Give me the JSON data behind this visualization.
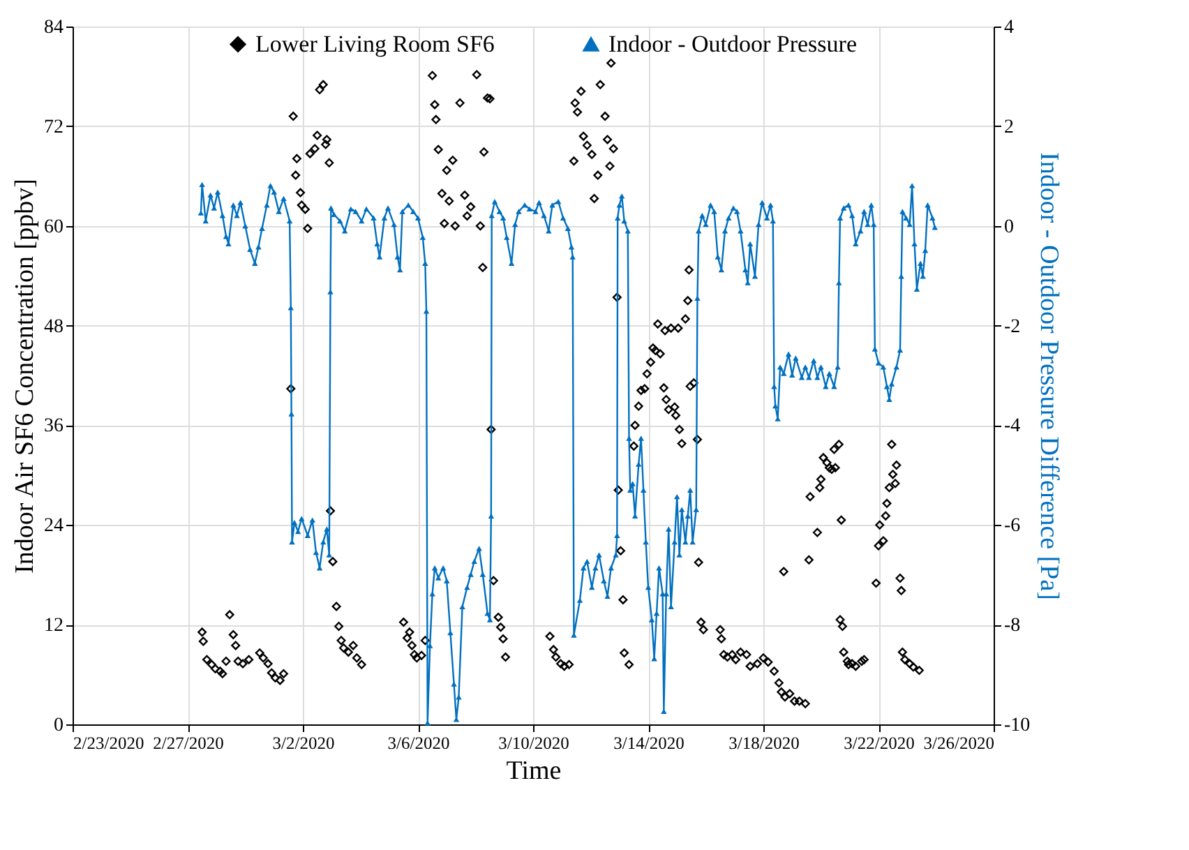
{
  "chart_data": {
    "type": "scatter",
    "xlabel": "Time",
    "ylabel": "Indoor Air SF6 Concentration [ppbv]",
    "y2label": "Indoor - Outdoor Pressure Difference [Pa]",
    "xlim": [
      "2020-02-23T00:00",
      "2020-03-26T00:00"
    ],
    "xticks": [
      {
        "value": "2020-02-23T00:00",
        "label": "2/23/2020"
      },
      {
        "value": "2020-02-27T00:00",
        "label": "2/27/2020"
      },
      {
        "value": "2020-03-02T00:00",
        "label": "3/2/2020"
      },
      {
        "value": "2020-03-06T00:00",
        "label": "3/6/2020"
      },
      {
        "value": "2020-03-10T00:00",
        "label": "3/10/2020"
      },
      {
        "value": "2020-03-14T00:00",
        "label": "3/14/2020"
      },
      {
        "value": "2020-03-18T00:00",
        "label": "3/18/2020"
      },
      {
        "value": "2020-03-22T00:00",
        "label": "3/22/2020"
      },
      {
        "value": "2020-03-26T00:00",
        "label": "3/26/2020"
      }
    ],
    "ylim": [
      0,
      84
    ],
    "yticks": [
      0,
      12,
      24,
      36,
      48,
      60,
      72,
      84
    ],
    "y2lim": [
      -10,
      4
    ],
    "y2ticks": [
      -10,
      -8,
      -6,
      -4,
      -2,
      0,
      2,
      4
    ],
    "grid": true,
    "legend": "top",
    "series": [
      {
        "name": "Lower Living Room SF6",
        "marker": "diamond",
        "color": "#000000",
        "x": [
          "2020-02-27T12:00",
          "2020-02-27T13:00",
          "2020-02-27T16:00",
          "2020-02-27T20:00",
          "2020-02-27T23:00",
          "2020-02-28T03:00",
          "2020-02-28T05:00",
          "2020-02-28T08:00",
          "2020-02-28T11:00",
          "2020-02-28T14:00",
          "2020-02-28T16:00",
          "2020-02-28T18:00",
          "2020-02-28T22:00",
          "2020-02-29T03:00",
          "2020-02-29T12:00",
          "2020-02-29T15:00",
          "2020-02-29T19:00",
          "2020-02-29T22:00",
          "2020-03-01T01:00",
          "2020-03-01T05:00",
          "2020-03-01T08:00",
          "2020-03-01T14:00",
          "2020-03-01T16:00",
          "2020-03-01T18:00",
          "2020-03-01T19:00",
          "2020-03-01T22:00",
          "2020-03-01T23:00",
          "2020-03-02T02:00",
          "2020-03-02T04:00",
          "2020-03-02T06:00",
          "2020-03-02T10:00",
          "2020-03-02T12:00",
          "2020-03-02T14:00",
          "2020-03-02T17:00",
          "2020-03-02T19:00",
          "2020-03-02T20:00",
          "2020-03-02T22:00",
          "2020-03-02T23:00",
          "2020-03-03T01:00",
          "2020-03-03T04:00",
          "2020-03-03T06:00",
          "2020-03-03T08:00",
          "2020-03-03T10:00",
          "2020-03-03T14:00",
          "2020-03-03T18:00",
          "2020-03-03T21:00",
          "2020-03-04T01:00",
          "2020-03-05T12:00",
          "2020-03-05T15:00",
          "2020-03-05T17:00",
          "2020-03-05T19:00",
          "2020-03-05T21:00",
          "2020-03-05T23:00",
          "2020-03-06T03:00",
          "2020-03-06T06:00",
          "2020-03-06T12:00",
          "2020-03-06T14:00",
          "2020-03-06T15:00",
          "2020-03-06T17:00",
          "2020-03-06T20:00",
          "2020-03-06T22:00",
          "2020-03-07T00:00",
          "2020-03-07T02:00",
          "2020-03-07T05:00",
          "2020-03-07T07:00",
          "2020-03-07T11:00",
          "2020-03-07T15:00",
          "2020-03-07T17:00",
          "2020-03-07T20:00",
          "2020-03-08T01:00",
          "2020-03-08T04:00",
          "2020-03-08T06:00",
          "2020-03-08T07:00",
          "2020-03-08T10:00",
          "2020-03-08T12:00",
          "2020-03-08T13:00",
          "2020-03-08T15:00",
          "2020-03-08T19:00",
          "2020-03-08T21:00",
          "2020-03-08T23:00",
          "2020-03-09T01:00",
          "2020-03-10T14:00",
          "2020-03-10T17:00",
          "2020-03-10T19:00",
          "2020-03-10T23:00",
          "2020-03-11T02:00",
          "2020-03-11T06:00",
          "2020-03-11T10:00",
          "2020-03-11T11:00",
          "2020-03-11T13:00",
          "2020-03-11T16:00",
          "2020-03-11T18:00",
          "2020-03-11T21:00",
          "2020-03-12T01:00",
          "2020-03-12T03:00",
          "2020-03-12T06:00",
          "2020-03-12T08:00",
          "2020-03-12T12:00",
          "2020-03-12T14:00",
          "2020-03-12T16:00",
          "2020-03-12T17:00",
          "2020-03-12T19:00",
          "2020-03-12T22:00",
          "2020-03-12T23:00",
          "2020-03-13T01:00",
          "2020-03-13T03:00",
          "2020-03-13T04:00",
          "2020-03-13T08:00",
          "2020-03-13T12:00",
          "2020-03-13T13:00",
          "2020-03-13T16:00",
          "2020-03-13T18:00",
          "2020-03-13T21:00",
          "2020-03-13T23:00",
          "2020-03-14T02:00",
          "2020-03-14T04:00",
          "2020-03-14T06:00",
          "2020-03-14T08:00",
          "2020-03-14T10:00",
          "2020-03-14T13:00",
          "2020-03-14T14:00",
          "2020-03-14T15:00",
          "2020-03-14T17:00",
          "2020-03-14T19:00",
          "2020-03-14T22:00",
          "2020-03-14T23:00",
          "2020-03-15T01:00",
          "2020-03-15T02:00",
          "2020-03-15T04:00",
          "2020-03-15T07:00",
          "2020-03-15T09:00",
          "2020-03-15T10:00",
          "2020-03-15T11:00",
          "2020-03-15T14:00",
          "2020-03-15T17:00",
          "2020-03-15T18:00",
          "2020-03-15T20:00",
          "2020-03-15T22:00",
          "2020-03-16T12:00",
          "2020-03-16T13:00",
          "2020-03-16T15:00",
          "2020-03-16T18:00",
          "2020-03-16T22:00",
          "2020-03-17T01:00",
          "2020-03-17T05:00",
          "2020-03-17T10:00",
          "2020-03-17T13:00",
          "2020-03-17T19:00",
          "2020-03-18T00:00",
          "2020-03-18T04:00",
          "2020-03-18T09:00",
          "2020-03-18T13:00",
          "2020-03-18T15:00",
          "2020-03-18T17:00",
          "2020-03-18T18:00",
          "2020-03-18T22:00",
          "2020-03-19T02:00",
          "2020-03-19T06:00",
          "2020-03-19T11:00",
          "2020-03-19T14:00",
          "2020-03-19T15:00",
          "2020-03-19T21:00",
          "2020-03-19T23:00",
          "2020-03-20T00:00",
          "2020-03-20T02:00",
          "2020-03-20T05:00",
          "2020-03-20T07:00",
          "2020-03-20T09:00",
          "2020-03-20T11:00",
          "2020-03-20T12:00",
          "2020-03-20T15:00",
          "2020-03-20T16:00",
          "2020-03-20T17:00",
          "2020-03-20T18:00",
          "2020-03-20T19:00",
          "2020-03-20T22:00",
          "2020-03-20T23:00",
          "2020-03-21T02:00",
          "2020-03-21T05:00",
          "2020-03-21T10:00",
          "2020-03-21T12:00",
          "2020-03-21T22:00",
          "2020-03-22T00:00",
          "2020-03-22T01:00",
          "2020-03-22T04:00",
          "2020-03-22T06:00",
          "2020-03-22T07:00",
          "2020-03-22T09:00",
          "2020-03-22T11:00",
          "2020-03-22T12:00",
          "2020-03-22T14:00",
          "2020-03-22T15:00",
          "2020-03-22T18:00",
          "2020-03-22T19:00",
          "2020-03-22T20:00",
          "2020-03-22T22:00",
          "2020-03-23T02:00",
          "2020-03-23T05:00",
          "2020-03-23T10:00"
        ],
        "values": [
          11.1,
          10.0,
          7.8,
          7.2,
          6.7,
          6.4,
          6.1,
          7.6,
          13.2,
          10.8,
          9.5,
          7.6,
          7.3,
          7.8,
          8.6,
          8.0,
          7.3,
          6.2,
          5.6,
          5.3,
          6.1,
          40.4,
          73.2,
          66.1,
          68.1,
          64.0,
          62.5,
          62.0,
          59.7,
          68.7,
          69.3,
          70.9,
          76.4,
          77.0,
          69.8,
          70.4,
          67.6,
          25.7,
          19.6,
          14.2,
          11.8,
          10.1,
          9.2,
          8.7,
          9.5,
          8.0,
          7.2,
          12.3,
          10.4,
          11.1,
          9.5,
          8.4,
          8.0,
          8.3,
          10.1,
          78.1,
          74.6,
          72.8,
          69.2,
          63.9,
          60.3,
          66.7,
          63.0,
          67.9,
          60.0,
          74.8,
          63.7,
          61.2,
          62.3,
          78.2,
          60.0,
          55.0,
          68.9,
          75.4,
          75.3,
          35.5,
          17.3,
          12.9,
          11.7,
          10.3,
          8.1,
          10.6,
          9.0,
          8.1,
          7.3,
          7.0,
          7.2,
          67.8,
          74.8,
          73.7,
          76.2,
          70.8,
          69.7,
          68.6,
          63.3,
          66.1,
          77.0,
          73.2,
          70.4,
          67.2,
          79.6,
          69.3,
          51.4,
          28.2,
          20.9,
          15.0,
          8.6,
          7.2,
          33.5,
          36.0,
          38.3,
          40.2,
          40.4,
          42.2,
          43.6,
          45.3,
          45.0,
          48.2,
          44.6,
          40.5,
          47.4,
          39.1,
          37.9,
          47.7,
          38.2,
          37.2,
          47.7,
          35.5,
          33.8,
          48.8,
          51.0,
          54.7,
          40.7,
          41.1,
          34.3,
          19.5,
          12.3,
          11.4,
          11.4,
          10.3,
          8.4,
          8.1,
          8.4,
          7.8,
          8.7,
          8.4,
          7.0,
          7.3,
          8.0,
          7.5,
          6.4,
          5.0,
          3.9,
          18.4,
          3.3,
          3.7,
          2.8,
          2.8,
          2.5,
          19.8,
          27.4,
          23.1,
          28.5,
          29.5,
          32.1,
          31.5,
          30.9,
          30.7,
          33.1,
          30.9,
          33.7,
          12.6,
          24.6,
          11.8,
          8.7,
          7.6,
          7.2,
          7.3,
          7.0,
          7.6,
          7.8,
          17.0,
          21.5,
          24.0,
          22.1,
          25.1,
          26.6,
          28.5,
          33.7,
          30.1,
          29.0,
          31.2,
          17.6,
          16.1,
          8.7,
          7.8,
          7.3,
          6.9,
          6.5
        ]
      },
      {
        "name": "Indoor - Outdoor Pressure",
        "type": "line",
        "axis": "y2",
        "marker": "triangle",
        "line_style": "solid",
        "color": "#0070c0",
        "x": [
          "2020-02-27T11:00",
          "2020-02-27T12:00",
          "2020-02-27T15:00",
          "2020-02-27T19:00",
          "2020-02-27T22:00",
          "2020-02-28T01:00",
          "2020-02-28T05:00",
          "2020-02-28T08:00",
          "2020-02-28T10:00",
          "2020-02-28T14:00",
          "2020-02-28T17:00",
          "2020-02-28T20:00",
          "2020-02-29T00:00",
          "2020-02-29T04:00",
          "2020-02-29T08:00",
          "2020-02-29T11:00",
          "2020-02-29T14:00",
          "2020-02-29T18:00",
          "2020-02-29T21:00",
          "2020-03-01T00:00",
          "2020-03-01T04:00",
          "2020-03-01T08:00",
          "2020-03-01T13:00",
          "2020-03-01T14:00",
          "2020-03-01T14:30",
          "2020-03-01T15:00",
          "2020-03-01T17:00",
          "2020-03-01T20:00",
          "2020-03-01T23:00",
          "2020-03-02T04:00",
          "2020-03-02T08:00",
          "2020-03-02T11:00",
          "2020-03-02T14:00",
          "2020-03-02T17:00",
          "2020-03-02T20:00",
          "2020-03-02T22:00",
          "2020-03-02T23:00",
          "2020-03-02T23:30",
          "2020-03-03T02:00",
          "2020-03-03T07:00",
          "2020-03-03T11:00",
          "2020-03-03T16:00",
          "2020-03-03T20:00",
          "2020-03-04T01:00",
          "2020-03-04T05:00",
          "2020-03-04T11:00",
          "2020-03-04T14:00",
          "2020-03-04T16:00",
          "2020-03-04T20:00",
          "2020-03-04T23:00",
          "2020-03-05T04:00",
          "2020-03-05T07:00",
          "2020-03-05T09:00",
          "2020-03-05T11:00",
          "2020-03-05T16:00",
          "2020-03-05T20:00",
          "2020-03-06T00:00",
          "2020-03-06T04:00",
          "2020-03-06T06:00",
          "2020-03-06T07:00",
          "2020-03-06T08:00",
          "2020-03-06T10:00",
          "2020-03-06T12:00",
          "2020-03-06T14:00",
          "2020-03-06T17:00",
          "2020-03-06T21:00",
          "2020-03-07T00:00",
          "2020-03-07T03:00",
          "2020-03-07T06:00",
          "2020-03-07T08:00",
          "2020-03-07T10:00",
          "2020-03-07T13:00",
          "2020-03-07T17:00",
          "2020-03-07T20:00",
          "2020-03-07T23:00",
          "2020-03-08T03:00",
          "2020-03-08T06:00",
          "2020-03-08T10:00",
          "2020-03-08T12:00",
          "2020-03-08T13:00",
          "2020-03-08T13:30",
          "2020-03-08T16:00",
          "2020-03-08T20:00",
          "2020-03-08T23:00",
          "2020-03-09T02:00",
          "2020-03-09T06:00",
          "2020-03-09T09:00",
          "2020-03-09T12:00",
          "2020-03-09T17:00",
          "2020-03-09T21:00",
          "2020-03-10T02:00",
          "2020-03-10T05:00",
          "2020-03-10T09:00",
          "2020-03-10T13:00",
          "2020-03-10T16:00",
          "2020-03-10T21:00",
          "2020-03-11T01:00",
          "2020-03-11T05:00",
          "2020-03-11T08:00",
          "2020-03-11T09:00",
          "2020-03-11T10:00",
          "2020-03-11T15:00",
          "2020-03-11T18:00",
          "2020-03-11T21:00",
          "2020-03-12T01:00",
          "2020-03-12T04:00",
          "2020-03-12T07:00",
          "2020-03-12T11:00",
          "2020-03-12T14:00",
          "2020-03-12T17:00",
          "2020-03-12T21:00",
          "2020-03-12T22:00",
          "2020-03-12T22:30",
          "2020-03-13T00:00",
          "2020-03-13T02:00",
          "2020-03-13T04:00",
          "2020-03-13T07:00",
          "2020-03-13T08:00",
          "2020-03-13T09:00",
          "2020-03-13T11:00",
          "2020-03-13T13:00",
          "2020-03-13T16:00",
          "2020-03-13T18:00",
          "2020-03-13T20:00",
          "2020-03-13T22:00",
          "2020-03-14T00:00",
          "2020-03-14T03:00",
          "2020-03-14T05:00",
          "2020-03-14T07:00",
          "2020-03-14T09:00",
          "2020-03-14T12:00",
          "2020-03-14T13:00",
          "2020-03-14T15:00",
          "2020-03-14T17:00",
          "2020-03-14T19:00",
          "2020-03-14T22:00",
          "2020-03-15T00:00",
          "2020-03-15T02:00",
          "2020-03-15T04:00",
          "2020-03-15T07:00",
          "2020-03-15T09:00",
          "2020-03-15T11:00",
          "2020-03-15T13:00",
          "2020-03-15T16:00",
          "2020-03-15T17:00",
          "2020-03-15T18:00",
          "2020-03-15T21:00",
          "2020-03-16T00:00",
          "2020-03-16T04:00",
          "2020-03-16T07:00",
          "2020-03-16T10:00",
          "2020-03-16T13:00",
          "2020-03-16T16:00",
          "2020-03-16T19:00",
          "2020-03-16T23:00",
          "2020-03-17T02:00",
          "2020-03-17T05:00",
          "2020-03-17T09:00",
          "2020-03-17T11:00",
          "2020-03-17T13:00",
          "2020-03-17T17:00",
          "2020-03-17T20:00",
          "2020-03-17T23:00",
          "2020-03-18T03:00",
          "2020-03-18T06:00",
          "2020-03-18T08:00",
          "2020-03-18T09:00",
          "2020-03-18T10:00",
          "2020-03-18T12:00",
          "2020-03-18T14:00",
          "2020-03-18T17:00",
          "2020-03-18T21:00",
          "2020-03-19T00:00",
          "2020-03-19T03:00",
          "2020-03-19T08:00",
          "2020-03-19T11:00",
          "2020-03-19T14:00",
          "2020-03-19T18:00",
          "2020-03-19T21:00",
          "2020-03-20T00:00",
          "2020-03-20T04:00",
          "2020-03-20T07:00",
          "2020-03-20T11:00",
          "2020-03-20T14:00",
          "2020-03-20T15:00",
          "2020-03-20T16:00",
          "2020-03-20T19:00",
          "2020-03-20T23:00",
          "2020-03-21T02:00",
          "2020-03-21T05:00",
          "2020-03-21T09:00",
          "2020-03-21T12:00",
          "2020-03-21T15:00",
          "2020-03-21T18:00",
          "2020-03-21T20:00",
          "2020-03-21T21:00",
          "2020-03-22T00:00",
          "2020-03-22T04:00",
          "2020-03-22T07:00",
          "2020-03-22T09:00",
          "2020-03-22T11:00",
          "2020-03-22T15:00",
          "2020-03-22T18:00",
          "2020-03-22T19:00",
          "2020-03-22T20:00",
          "2020-03-22T23:00",
          "2020-03-23T02:00",
          "2020-03-23T04:00",
          "2020-03-23T06:00",
          "2020-03-23T08:00",
          "2020-03-23T11:00",
          "2020-03-23T13:00",
          "2020-03-23T15:00",
          "2020-03-23T17:00",
          "2020-03-23T21:00",
          "2020-03-23T23:00"
        ],
        "values": [
          0.26,
          0.83,
          0.1,
          0.62,
          0.36,
          0.68,
          0.21,
          -0.21,
          -0.36,
          0.42,
          0.21,
          0.47,
          0.0,
          -0.47,
          -0.75,
          -0.42,
          -0.05,
          0.42,
          0.81,
          0.68,
          0.29,
          0.55,
          0.1,
          -1.64,
          -3.77,
          -6.34,
          -5.95,
          -6.13,
          -5.87,
          -6.21,
          -5.9,
          -6.55,
          -6.86,
          -6.34,
          -6.08,
          -6.6,
          -1.32,
          0.36,
          0.23,
          0.1,
          -0.1,
          0.34,
          0.29,
          0.1,
          0.34,
          0.16,
          -0.36,
          -0.62,
          0.16,
          0.36,
          0.03,
          -0.62,
          -0.88,
          0.29,
          0.42,
          0.29,
          0.16,
          -0.23,
          -0.75,
          -1.71,
          -9.97,
          -8.42,
          -7.38,
          -6.86,
          -7.06,
          -6.86,
          -7.12,
          -8.16,
          -9.19,
          -9.9,
          -9.45,
          -7.64,
          -7.25,
          -6.99,
          -6.73,
          -6.47,
          -6.99,
          -7.77,
          -7.9,
          -5.82,
          0.21,
          0.49,
          0.29,
          0.16,
          -0.23,
          -0.75,
          0.03,
          0.29,
          0.42,
          0.34,
          0.29,
          0.47,
          0.21,
          -0.1,
          0.42,
          0.49,
          0.16,
          -0.05,
          -0.42,
          -0.62,
          -8.21,
          -7.51,
          -6.86,
          -6.73,
          -7.25,
          -6.86,
          -6.6,
          -7.12,
          -7.43,
          -6.86,
          -6.6,
          -6.21,
          0.16,
          0.42,
          0.6,
          0.1,
          -0.1,
          -4.26,
          -5.3,
          -5.17,
          -5.82,
          -4.78,
          -4.26,
          -5.3,
          -6.34,
          -7.25,
          -7.9,
          -8.68,
          -7.77,
          -6.86,
          -7.38,
          -9.74,
          -7.38,
          -6.08,
          -7.64,
          -6.34,
          -5.43,
          -6.6,
          -5.69,
          -6.34,
          -5.82,
          -5.3,
          -6.34,
          -5.69,
          -1.45,
          -0.1,
          0.21,
          0.03,
          0.42,
          0.29,
          -0.62,
          -0.88,
          -0.1,
          0.16,
          0.36,
          0.29,
          -0.1,
          -0.88,
          -1.14,
          -0.36,
          -1.01,
          0.03,
          0.47,
          0.16,
          0.42,
          0.1,
          -3.22,
          -3.61,
          -3.87,
          -2.83,
          -2.96,
          -2.57,
          -2.99,
          -2.65,
          -3.04,
          -2.83,
          -3.04,
          -2.7,
          -3.04,
          -2.83,
          -3.22,
          -2.96,
          -3.22,
          -2.83,
          -1.14,
          0.16,
          0.36,
          0.42,
          0.21,
          -0.36,
          -0.1,
          0.29,
          0.03,
          0.42,
          0.03,
          -2.47,
          -2.75,
          -2.83,
          -3.22,
          -3.48,
          -3.17,
          -2.83,
          -2.49,
          -1.01,
          0.29,
          0.16,
          0.03,
          0.81,
          -0.36,
          -1.27,
          -0.75,
          -1.01,
          -0.49,
          0.42,
          0.16,
          -0.03
        ]
      }
    ]
  }
}
